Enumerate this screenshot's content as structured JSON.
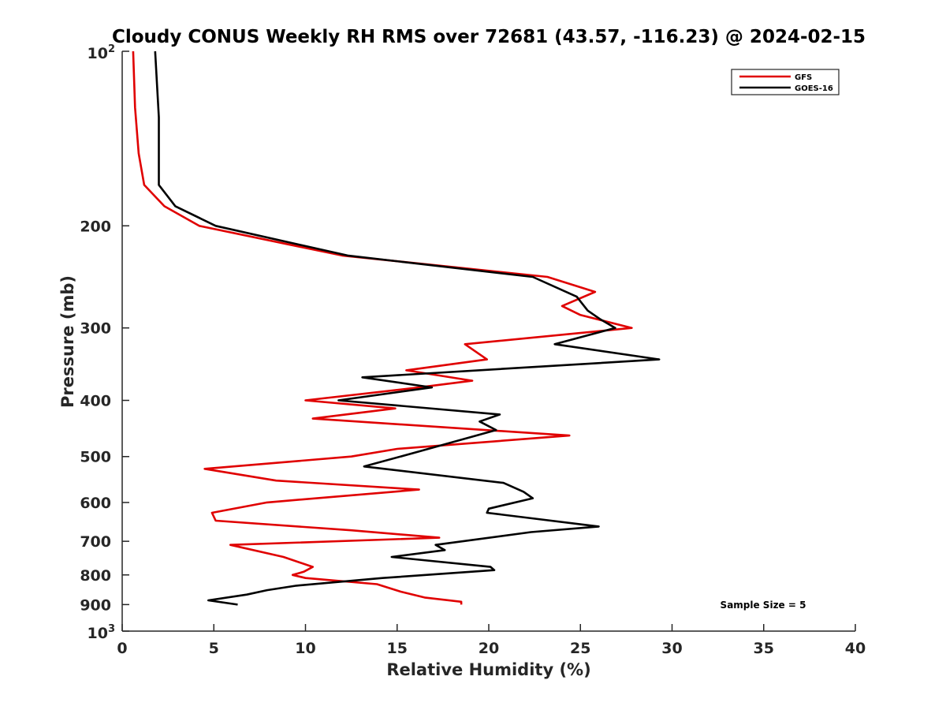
{
  "chart_data": {
    "type": "line",
    "title": "Cloudy CONUS Weekly RH RMS over 72681 (43.57, -116.23) @ 2024-02-15",
    "xlabel": "Relative Humidity (%)",
    "ylabel": "Pressure (mb)",
    "xlim": [
      0,
      40
    ],
    "ylim": [
      100,
      1000
    ],
    "y_scale": "log",
    "y_reversed": true,
    "x_ticks": [
      0,
      5,
      10,
      15,
      20,
      25,
      30,
      35,
      40
    ],
    "x_tick_labels": [
      "0",
      "5",
      "10",
      "15",
      "20",
      "25",
      "30",
      "35",
      "40"
    ],
    "y_ticks": [
      200,
      300,
      400,
      500,
      600,
      700,
      800,
      900
    ],
    "y_tick_labels": [
      "200",
      "300",
      "400",
      "500",
      "600",
      "700",
      "800",
      "900"
    ],
    "y_tick_exp_labels": [
      {
        "value": 100,
        "base": "10",
        "exp": "2"
      },
      {
        "value": 1000,
        "base": "10",
        "exp": "3"
      }
    ],
    "grid": false,
    "legend_position": "top-right",
    "annotation": "Sample Size = 5",
    "series": [
      {
        "name": "GFS",
        "color": "#e00000",
        "points": [
          [
            0.6,
            100
          ],
          [
            0.7,
            125
          ],
          [
            0.9,
            150
          ],
          [
            1.2,
            170
          ],
          [
            2.3,
            185
          ],
          [
            4.2,
            200
          ],
          [
            12.0,
            225
          ],
          [
            23.2,
            245
          ],
          [
            25.8,
            260
          ],
          [
            24.0,
            275
          ],
          [
            25.0,
            285
          ],
          [
            27.8,
            300
          ],
          [
            18.7,
            320
          ],
          [
            19.9,
            340
          ],
          [
            15.5,
            355
          ],
          [
            19.1,
            370
          ],
          [
            16.2,
            380
          ],
          [
            10.0,
            400
          ],
          [
            14.9,
            413
          ],
          [
            10.4,
            430
          ],
          [
            24.4,
            460
          ],
          [
            15.0,
            485
          ],
          [
            12.5,
            500
          ],
          [
            4.5,
            525
          ],
          [
            8.4,
            550
          ],
          [
            16.2,
            570
          ],
          [
            7.9,
            600
          ],
          [
            4.9,
            625
          ],
          [
            5.1,
            645
          ],
          [
            12.5,
            670
          ],
          [
            17.3,
            690
          ],
          [
            5.9,
            710
          ],
          [
            8.8,
            745
          ],
          [
            10.4,
            775
          ],
          [
            9.9,
            790
          ],
          [
            9.3,
            800
          ],
          [
            10.0,
            810
          ],
          [
            13.9,
            830
          ],
          [
            15.2,
            855
          ],
          [
            16.5,
            875
          ],
          [
            18.5,
            890
          ],
          [
            18.5,
            900
          ]
        ]
      },
      {
        "name": "GOES-16",
        "color": "#000000",
        "points": [
          [
            1.8,
            100
          ],
          [
            2.0,
            130
          ],
          [
            2.0,
            170
          ],
          [
            2.9,
            185
          ],
          [
            5.1,
            200
          ],
          [
            12.3,
            225
          ],
          [
            22.4,
            245
          ],
          [
            24.8,
            265
          ],
          [
            25.4,
            280
          ],
          [
            26.1,
            290
          ],
          [
            26.9,
            300
          ],
          [
            23.6,
            320
          ],
          [
            29.3,
            340
          ],
          [
            13.1,
            365
          ],
          [
            16.9,
            380
          ],
          [
            11.8,
            400
          ],
          [
            20.6,
            423
          ],
          [
            19.5,
            435
          ],
          [
            20.4,
            450
          ],
          [
            16.2,
            490
          ],
          [
            13.2,
            520
          ],
          [
            20.8,
            555
          ],
          [
            21.9,
            575
          ],
          [
            22.4,
            590
          ],
          [
            20.0,
            615
          ],
          [
            19.9,
            625
          ],
          [
            26.0,
            660
          ],
          [
            22.3,
            675
          ],
          [
            17.1,
            710
          ],
          [
            17.6,
            725
          ],
          [
            14.7,
            745
          ],
          [
            20.1,
            775
          ],
          [
            20.3,
            785
          ],
          [
            14.2,
            810
          ],
          [
            9.5,
            835
          ],
          [
            7.9,
            850
          ],
          [
            6.8,
            865
          ],
          [
            4.7,
            885
          ],
          [
            6.3,
            900
          ]
        ]
      }
    ]
  }
}
